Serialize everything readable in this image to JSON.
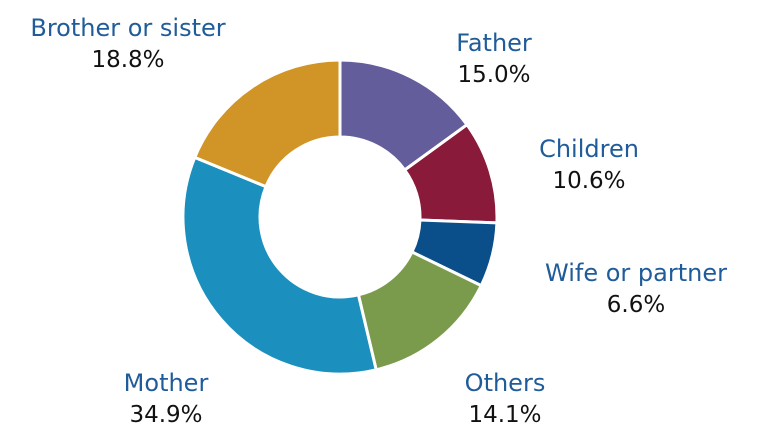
{
  "chart_data": {
    "type": "pie",
    "donut": true,
    "start_angle_deg": 0,
    "direction": "clockwise",
    "slices": [
      {
        "label": "Father",
        "value": 15.0,
        "value_text": "15.0%",
        "color": "#635e9b"
      },
      {
        "label": "Children",
        "value": 10.6,
        "value_text": "10.6%",
        "color": "#8a1a3a"
      },
      {
        "label": "Wife or partner",
        "value": 6.6,
        "value_text": "6.6%",
        "color": "#0b4f8a"
      },
      {
        "label": "Others",
        "value": 14.1,
        "value_text": "14.1%",
        "color": "#7a9a4c"
      },
      {
        "label": "Mother",
        "value": 34.9,
        "value_text": "34.9%",
        "color": "#1b8fbd"
      },
      {
        "label": "Brother or sister",
        "value": 18.8,
        "value_text": "18.8%",
        "color": "#d19426"
      }
    ]
  }
}
